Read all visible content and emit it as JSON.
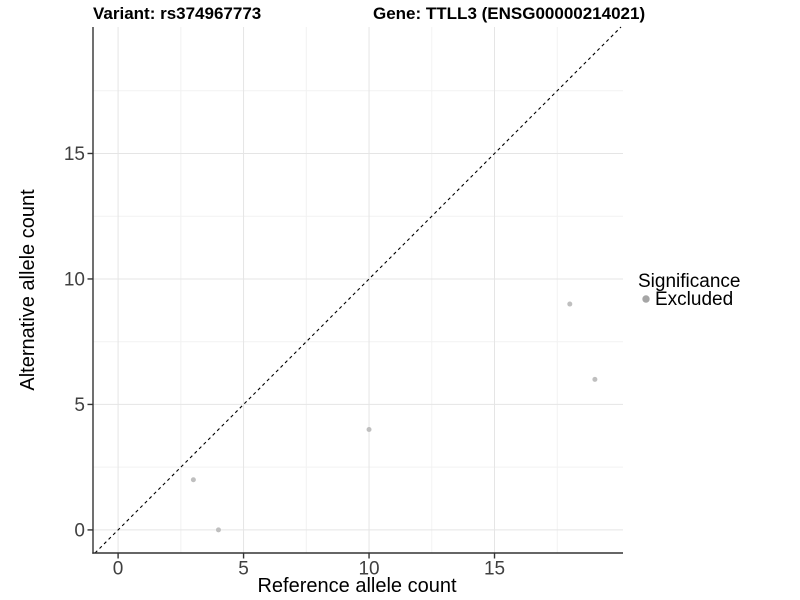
{
  "figure": {
    "title_left": "Variant: rs374967773",
    "title_right": "Gene: TTLL3 (ENSG00000214021)"
  },
  "chart_data": {
    "type": "scatter",
    "title": "Variant: rs374967773 / Gene: TTLL3 (ENSG00000214021)",
    "xlabel": "Reference allele count",
    "ylabel": "Alternative allele count",
    "xlim": [
      -1.0,
      20.12
    ],
    "ylim": [
      -0.92,
      20.04
    ],
    "xticks": [
      0,
      5,
      10,
      15
    ],
    "yticks": [
      0,
      5,
      10,
      15
    ],
    "xticks_minor": [
      2.5,
      7.5,
      12.5,
      17.5
    ],
    "yticks_minor": [
      2.5,
      7.5,
      12.5,
      17.5
    ],
    "grid": "major+minor",
    "identity_line": {
      "type": "abline",
      "slope": 1,
      "intercept": 0,
      "style": "dashed",
      "color": "#000000"
    },
    "series": [
      {
        "name": "Excluded",
        "color": "#bfbfbf",
        "points": [
          {
            "x": 3,
            "y": 2
          },
          {
            "x": 4,
            "y": 0
          },
          {
            "x": 10,
            "y": 4
          },
          {
            "x": 18,
            "y": 9
          },
          {
            "x": 19,
            "y": 6
          }
        ]
      }
    ],
    "legend": {
      "title": "Significance",
      "position": "right",
      "entries": [
        {
          "label": "Excluded",
          "swatch_color": "#a6a6a6"
        }
      ]
    }
  },
  "colors": {
    "background": "#ffffff",
    "grid_major": "#e5e5e5",
    "grid_minor": "#f2f2f2",
    "axis_line": "#333333",
    "tick_mark": "#333333",
    "tick_text": "#404040",
    "point": "#bfbfbf",
    "identity_line": "#000000"
  }
}
